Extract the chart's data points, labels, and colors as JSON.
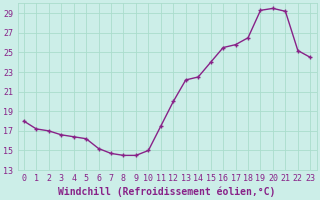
{
  "x": [
    0,
    1,
    2,
    3,
    4,
    5,
    6,
    7,
    8,
    9,
    10,
    11,
    12,
    13,
    14,
    15,
    16,
    17,
    18,
    19,
    20,
    21,
    22,
    23
  ],
  "y": [
    18.0,
    17.2,
    17.0,
    16.6,
    16.4,
    16.2,
    15.2,
    14.7,
    14.5,
    14.5,
    15.0,
    17.5,
    20.0,
    22.2,
    22.5,
    24.0,
    25.5,
    25.8,
    26.5,
    29.3,
    29.5,
    29.2,
    25.2,
    24.5
  ],
  "line_color": "#882288",
  "marker": "+",
  "marker_color": "#882288",
  "bg_color": "#cceee8",
  "grid_color": "#aaddcc",
  "xlabel": "Windchill (Refroidissement éolien,°C)",
  "ylim": [
    13,
    30
  ],
  "xlim": [
    -0.5,
    23.5
  ],
  "yticks": [
    13,
    15,
    17,
    19,
    21,
    23,
    25,
    27,
    29
  ],
  "xticks": [
    0,
    1,
    2,
    3,
    4,
    5,
    6,
    7,
    8,
    9,
    10,
    11,
    12,
    13,
    14,
    15,
    16,
    17,
    18,
    19,
    20,
    21,
    22,
    23
  ],
  "xlabel_fontsize": 7.0,
  "tick_fontsize": 6.0,
  "line_width": 1.0,
  "marker_size": 3.5
}
